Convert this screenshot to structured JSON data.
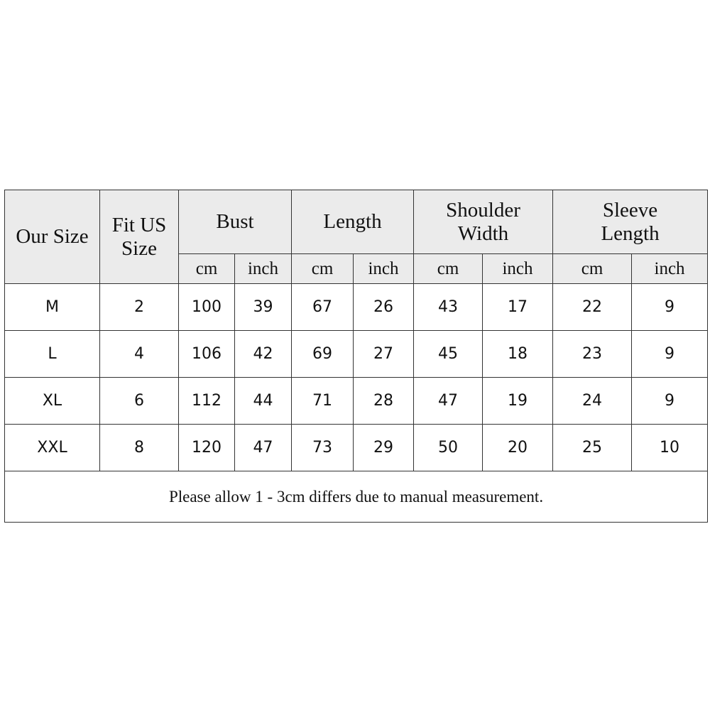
{
  "headers": {
    "our_size": "Our Size",
    "fit_us_size": "Fit US Size",
    "groups": [
      "Bust",
      "Length",
      "Shoulder Width",
      "Sleeve Length"
    ],
    "units": [
      "cm",
      "inch"
    ]
  },
  "rows": [
    {
      "size": "M",
      "us": "2",
      "values": [
        "100",
        "39",
        "67",
        "26",
        "43",
        "17",
        "22",
        "9"
      ]
    },
    {
      "size": "L",
      "us": "4",
      "values": [
        "106",
        "42",
        "69",
        "27",
        "45",
        "18",
        "23",
        "9"
      ]
    },
    {
      "size": "XL",
      "us": "6",
      "values": [
        "112",
        "44",
        "71",
        "28",
        "47",
        "19",
        "24",
        "9"
      ]
    },
    {
      "size": "XXL",
      "us": "8",
      "values": [
        "120",
        "47",
        "73",
        "29",
        "50",
        "20",
        "25",
        "10"
      ]
    }
  ],
  "note": "Please allow 1 - 3cm differs due to manual measurement.",
  "colors": {
    "header_bg": "#ebebeb",
    "border": "#333333"
  }
}
